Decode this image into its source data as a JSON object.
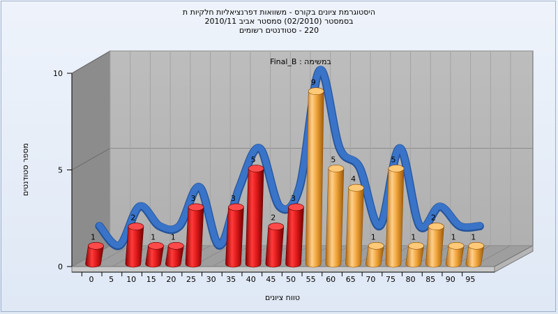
{
  "chart_data": {
    "type": "bar",
    "title_lines": [
      "היסטוגרמת ציונים בקורס - משוואות דפרנציאליות חלקיות ת",
      "בסמסטר  (02/2010)  סמסטר אביב 2010/11",
      "220 - סטודנטים רשומים"
    ],
    "annotation": "במשימה : Final_B",
    "xlabel": "טווח ציונים",
    "ylabel": "מספר סטודנטים",
    "x_ticks": [
      "0",
      "5",
      "10",
      "15",
      "20",
      "25",
      "30",
      "35",
      "40",
      "45",
      "50",
      "55",
      "60",
      "65",
      "70",
      "75",
      "80",
      "85",
      "90",
      "95"
    ],
    "y_ticks": [
      "0",
      "5",
      "10"
    ],
    "ylim": [
      0,
      10
    ],
    "bins": [
      0,
      5,
      10,
      15,
      20,
      25,
      30,
      35,
      40,
      45,
      50,
      55,
      60,
      65,
      70,
      75,
      80,
      85,
      90,
      95
    ],
    "values": [
      1,
      0,
      2,
      1,
      1,
      3,
      0,
      3,
      5,
      2,
      3,
      9,
      5,
      4,
      1,
      5,
      1,
      2,
      1,
      1
    ],
    "value_labels": [
      "1",
      "",
      "2",
      "1",
      "1",
      "3",
      "",
      "3",
      "5",
      "2",
      "3",
      "9",
      "5",
      "4",
      "1",
      "5",
      "1",
      "2",
      "1",
      "1"
    ],
    "fail_color": "#e01a1a",
    "pass_color": "#f0a43a",
    "pass_from_index": 11,
    "trend_color": "#3a74c8",
    "grid": true,
    "style": "3d-cylinder"
  }
}
